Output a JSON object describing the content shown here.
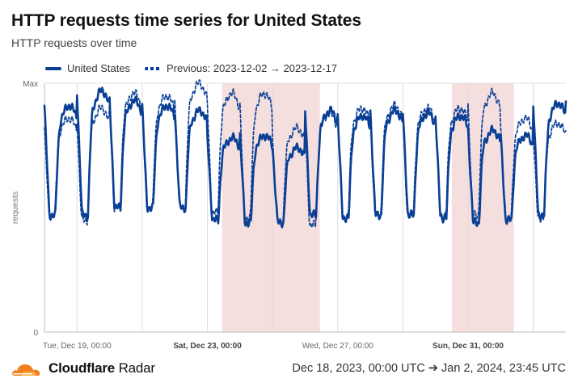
{
  "header": {
    "title": "HTTP requests time series for United States",
    "subtitle": "HTTP requests over time"
  },
  "legend": {
    "current": "United States",
    "previous": "Previous: 2023-12-02 → 2023-12-17"
  },
  "footer": {
    "brand_bold": "Cloudflare",
    "brand_regular": " Radar",
    "date_range": "Dec 18, 2023, 00:00 UTC ➔ Jan 2, 2024, 23:45 UTC"
  },
  "colors": {
    "line": "#0a3f96",
    "weekend_band": "#f4dfde",
    "grid": "#dcdcdc",
    "brand_orange": "#f38020"
  },
  "chart_data": {
    "type": "line",
    "title": "HTTP requests time series for United States",
    "subtitle": "HTTP requests over time",
    "ylabel": "requests",
    "y_ticks": [
      "Max",
      "0"
    ],
    "ylim": [
      0,
      1
    ],
    "x_unit": "days since Dec 18, 2023, 00:00 UTC",
    "xlim": [
      0,
      16
    ],
    "x_ticks": [
      {
        "x": 1,
        "label": "Tue, Dec 19, 00:00",
        "bold": false
      },
      {
        "x": 5,
        "label": "Sat, Dec 23, 00:00",
        "bold": true
      },
      {
        "x": 9,
        "label": "Wed, Dec 27, 00:00",
        "bold": false
      },
      {
        "x": 13,
        "label": "Sun, Dec 31, 00:00",
        "bold": true
      }
    ],
    "vertical_gridlines": [
      1,
      3,
      5,
      7,
      9,
      11,
      13,
      15
    ],
    "weekend_bands": [
      [
        5.45,
        8.45
      ],
      [
        12.5,
        14.4
      ]
    ],
    "legend_position": "top-left",
    "series": [
      {
        "name": "United States",
        "style": "solid",
        "daily_peaks": [
          0.91,
          0.97,
          0.93,
          0.91,
          0.89,
          0.78,
          0.79,
          0.74,
          0.89,
          0.87,
          0.89,
          0.88,
          0.87,
          0.81,
          0.79,
          0.92
        ],
        "daily_troughs": [
          0.47,
          0.47,
          0.5,
          0.5,
          0.5,
          0.45,
          0.44,
          0.44,
          0.47,
          0.46,
          0.47,
          0.47,
          0.46,
          0.44,
          0.45,
          0.47
        ]
      },
      {
        "name": "Previous: 2023-12-02 → 2023-12-17",
        "style": "dashed",
        "daily_peaks": [
          0.86,
          0.9,
          0.96,
          0.95,
          1.0,
          0.96,
          0.96,
          0.82,
          0.88,
          0.9,
          0.91,
          0.9,
          0.9,
          0.96,
          0.86,
          0.84
        ],
        "daily_troughs": [
          0.47,
          0.45,
          0.5,
          0.5,
          0.5,
          0.48,
          0.46,
          0.44,
          0.43,
          0.46,
          0.47,
          0.47,
          0.47,
          0.47,
          0.45,
          0.46
        ]
      }
    ]
  }
}
